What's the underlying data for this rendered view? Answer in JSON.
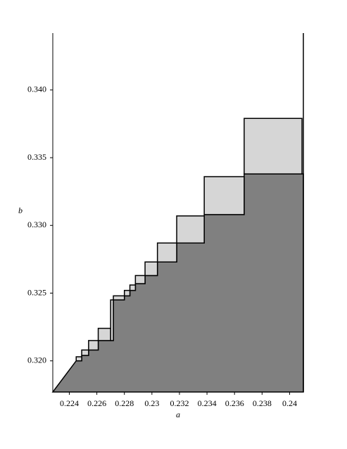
{
  "chart_data": {
    "type": "staircase",
    "xlabel": "a",
    "ylabel": "b",
    "xlim": [
      0.2228,
      0.241
    ],
    "ylim": [
      0.3177,
      0.3442
    ],
    "xticks": [
      0.224,
      0.226,
      0.228,
      0.23,
      0.232,
      0.234,
      0.236,
      0.238,
      0.24
    ],
    "xtick_labels_fix": null,
    "yticks": [
      {
        "value": 0.32,
        "label": "0.320"
      },
      0.325,
      {
        "value": 0.33,
        "label": "0.330"
      },
      0.335,
      {
        "value": 0.34,
        "label": "0.340"
      }
    ],
    "region_color": "#808080",
    "box_color": "#d6d6d6",
    "boxes": [
      [
        0.2245,
        0.2249,
        0.32,
        0.3203
      ],
      [
        0.2249,
        0.2254,
        0.3204,
        0.3208
      ],
      [
        0.2254,
        0.2261,
        0.3208,
        0.3215
      ],
      [
        0.2261,
        0.227,
        0.3215,
        0.3224
      ],
      [
        0.227,
        0.2272,
        0.3215,
        0.3245
      ],
      [
        0.2272,
        0.228,
        0.3245,
        0.3248
      ],
      [
        0.228,
        0.2284,
        0.3248,
        0.3252
      ],
      [
        0.2284,
        0.2288,
        0.3252,
        0.3256
      ],
      [
        0.2288,
        0.2295,
        0.3257,
        0.3263
      ],
      [
        0.2295,
        0.2304,
        0.3263,
        0.3273
      ],
      [
        0.2304,
        0.2318,
        0.3273,
        0.3287
      ],
      [
        0.2318,
        0.2338,
        0.3287,
        0.3307
      ],
      [
        0.2338,
        0.2367,
        0.3308,
        0.3336
      ],
      [
        0.2367,
        0.2409,
        0.3338,
        0.3379
      ]
    ]
  }
}
